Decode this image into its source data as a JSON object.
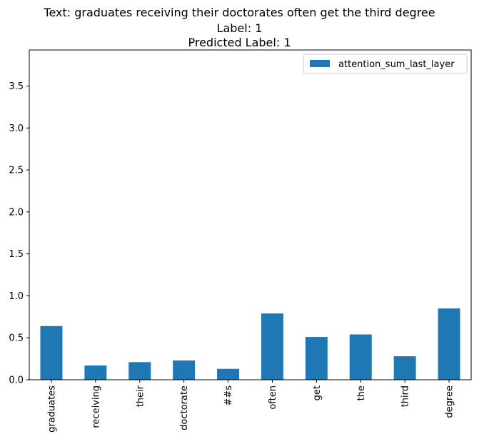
{
  "chart_data": {
    "type": "bar",
    "title": [
      "Text: graduates receiving their doctorates often get the third degree",
      "Label: 1",
      "Predicted Label: 1"
    ],
    "xlabel": "",
    "ylabel": "",
    "categories": [
      "graduates",
      "receiving",
      "their",
      "doctorate",
      "##s",
      "often",
      "get",
      "the",
      "third",
      "degree"
    ],
    "series": [
      {
        "name": "attention_sum_last_layer",
        "values": [
          0.64,
          0.17,
          0.21,
          0.23,
          0.13,
          0.79,
          0.51,
          0.54,
          0.28,
          0.85
        ],
        "color": "#1f77b4"
      }
    ],
    "ylim": [
      0,
      3.93
    ],
    "yticks": [
      0.0,
      0.5,
      1.0,
      1.5,
      2.0,
      2.5,
      3.0,
      3.5
    ],
    "ytick_labels": [
      "0.0",
      "0.5",
      "1.0",
      "1.5",
      "2.0",
      "2.5",
      "3.0",
      "3.5"
    ],
    "grid": false,
    "legend_position": "top-right"
  }
}
